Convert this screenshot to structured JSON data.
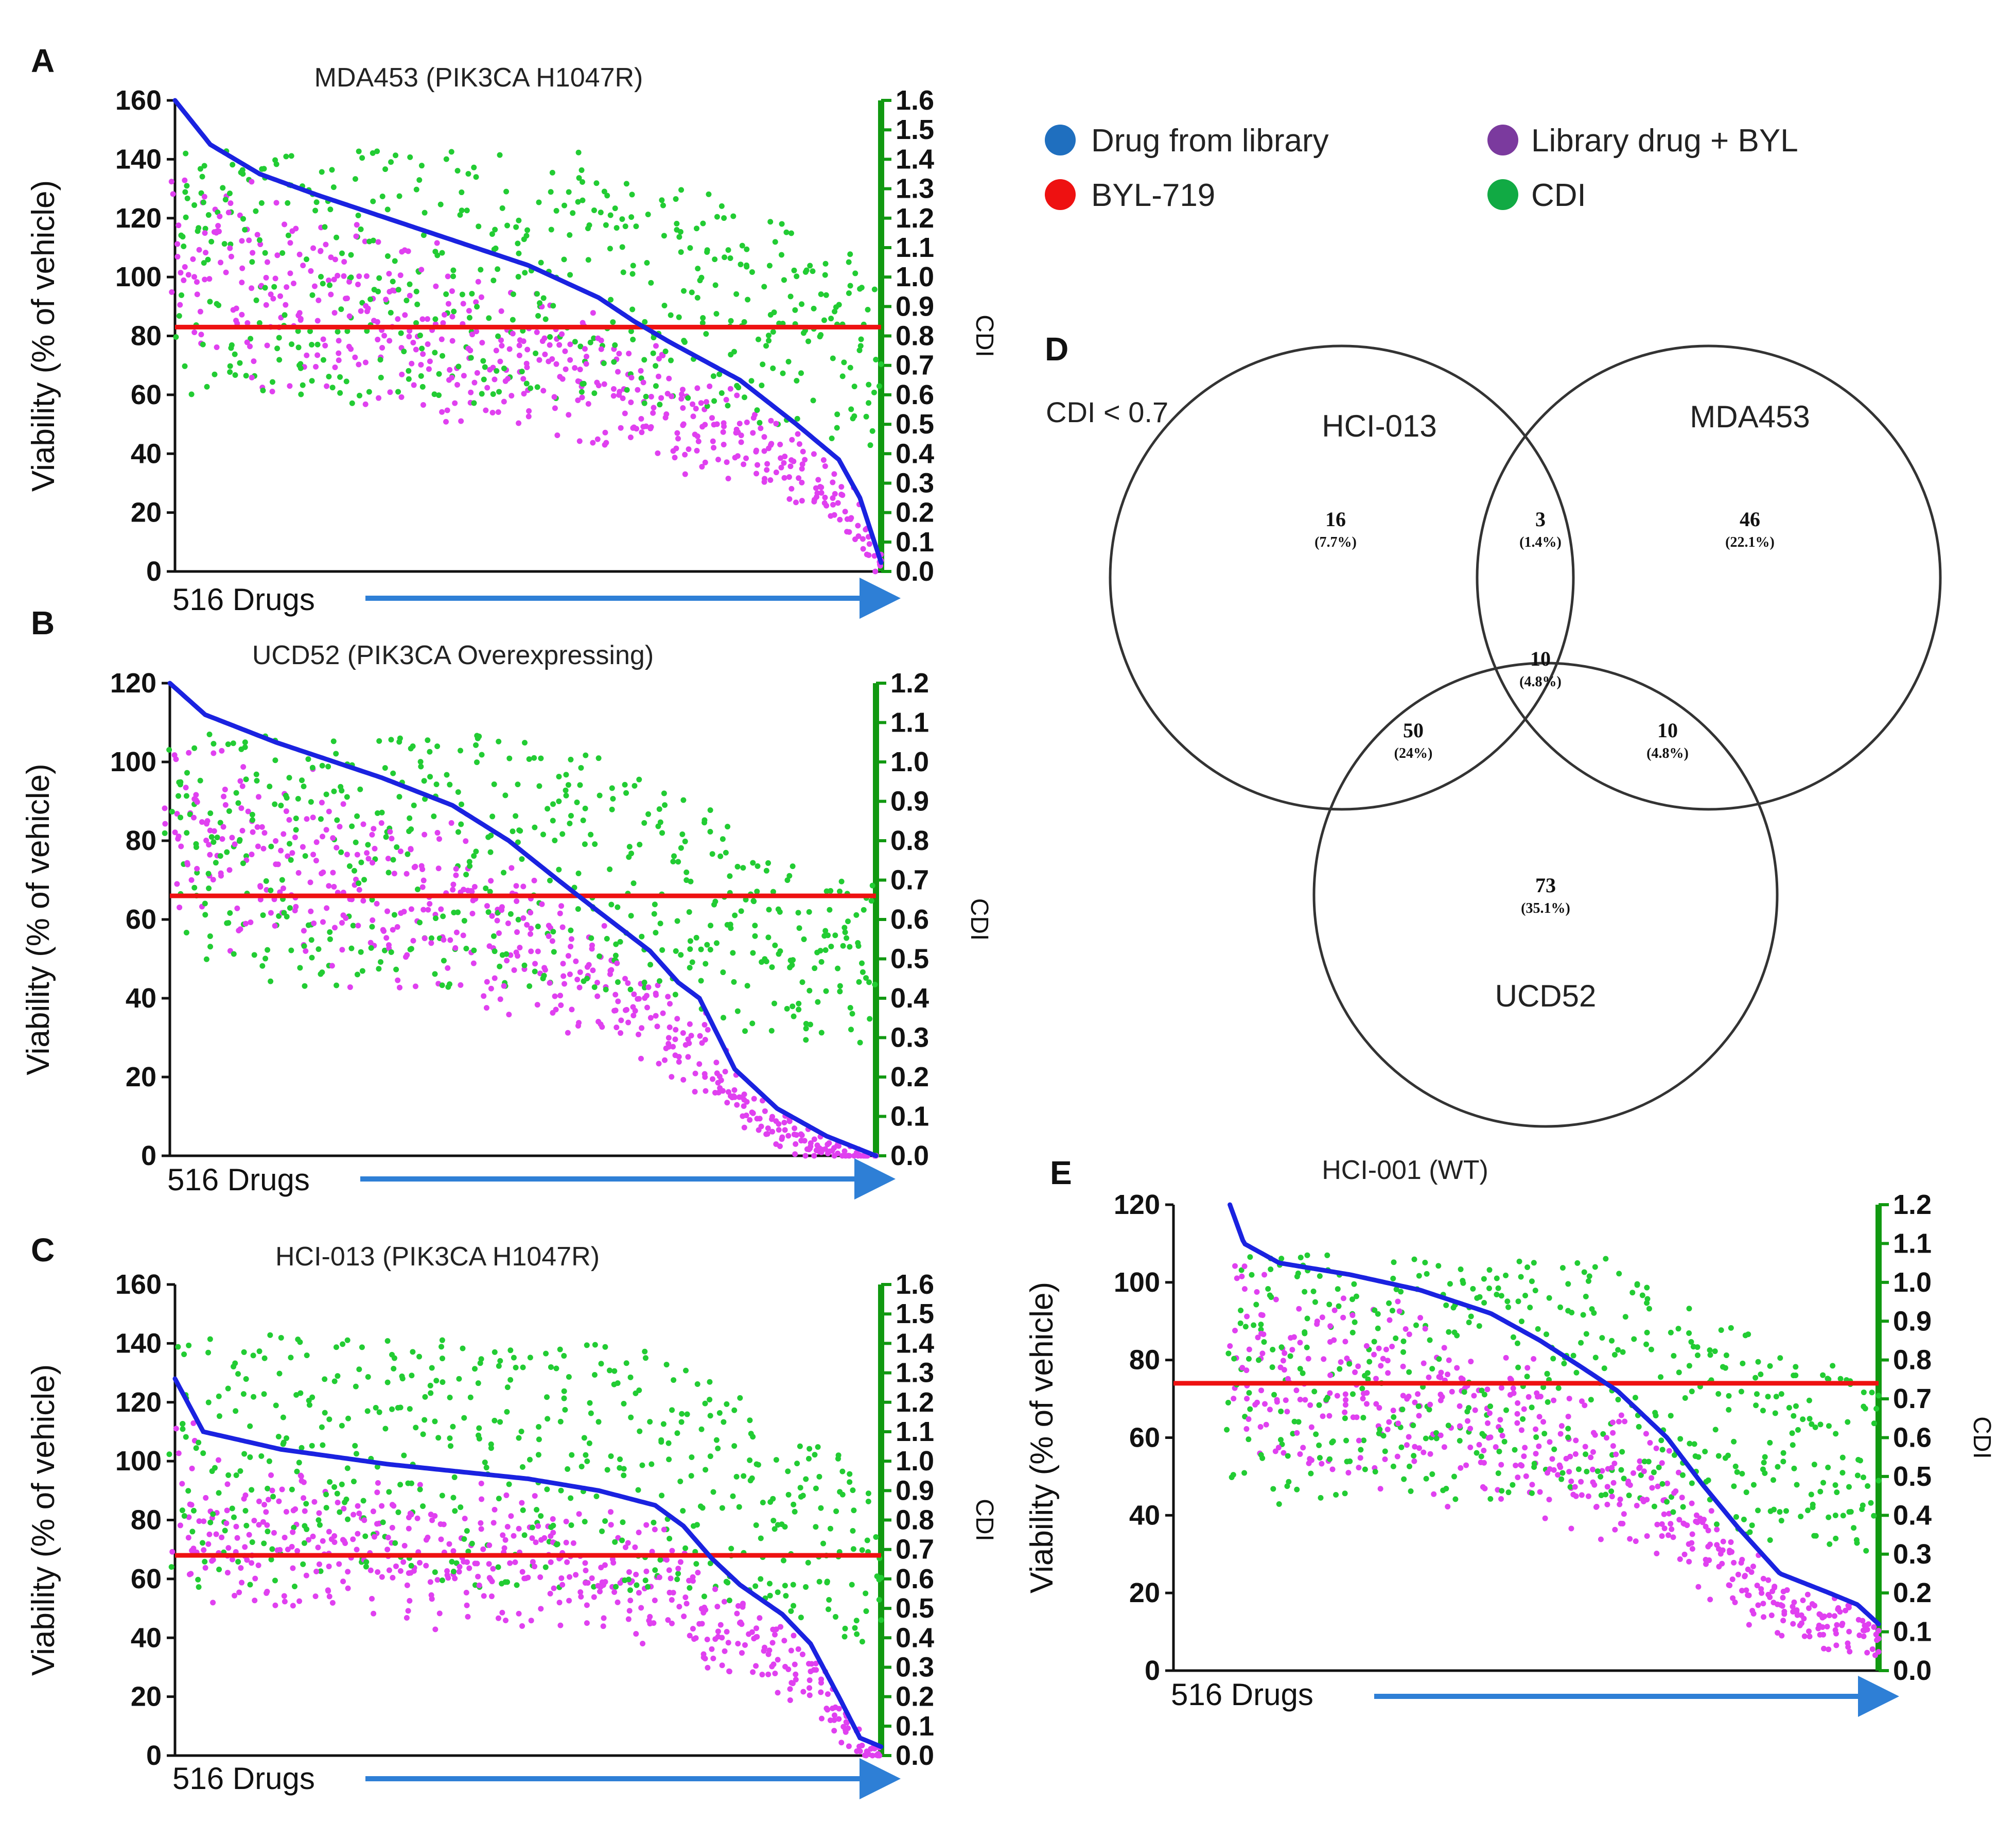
{
  "legend": {
    "items": [
      {
        "label": "Drug  from library",
        "color": "#1f6fbf"
      },
      {
        "label": "BYL-719",
        "color": "#ee1111"
      },
      {
        "label": "Library drug + BYL",
        "color": "#7b3a9e"
      },
      {
        "label": "CDI",
        "color": "#11aa44"
      }
    ]
  },
  "colors": {
    "drug_curve": "#1a22e0",
    "combo_points": "#e040f0",
    "cdi_points": "#22cc33",
    "byl_line": "#ee1111",
    "cdi_axis": "#119911",
    "arrow": "#2e7fd6"
  },
  "chart_data": [
    {
      "panel": "A",
      "type": "scatter",
      "title": "MDA453 (PIK3CA H1047R)",
      "ylabel": "Viability (% of vehicle)",
      "y2label": "CDI",
      "xlabel": "516 Drugs",
      "n_drugs": 516,
      "ylim": [
        0,
        160
      ],
      "yticks": [
        "0",
        "20",
        "40",
        "60",
        "80",
        "100",
        "120",
        "140",
        "160"
      ],
      "y2lim": [
        0,
        1.6
      ],
      "y2ticks": [
        "0.0",
        "0.1",
        "0.2",
        "0.3",
        "0.4",
        "0.5",
        "0.6",
        "0.7",
        "0.8",
        "0.9",
        "1.0",
        "1.1",
        "1.2",
        "1.3",
        "1.4",
        "1.5",
        "1.6"
      ],
      "byl_viability": 83,
      "drug_curve": [
        [
          0,
          160
        ],
        [
          0.05,
          145
        ],
        [
          0.12,
          135
        ],
        [
          0.2,
          128
        ],
        [
          0.3,
          120
        ],
        [
          0.4,
          112
        ],
        [
          0.5,
          104
        ],
        [
          0.6,
          93
        ],
        [
          0.65,
          85
        ],
        [
          0.7,
          78
        ],
        [
          0.8,
          65
        ],
        [
          0.88,
          50
        ],
        [
          0.94,
          38
        ],
        [
          0.97,
          25
        ],
        [
          1.0,
          3
        ]
      ]
    },
    {
      "panel": "B",
      "type": "scatter",
      "title": "UCD52 (PIK3CA Overexpressing)",
      "ylabel": "Viability (% of vehicle)",
      "y2label": "CDI",
      "xlabel": "516 Drugs",
      "n_drugs": 516,
      "ylim": [
        0,
        120
      ],
      "yticks": [
        "0",
        "20",
        "40",
        "60",
        "80",
        "100",
        "120"
      ],
      "y2lim": [
        0,
        1.2
      ],
      "y2ticks": [
        "0.0",
        "0.1",
        "0.2",
        "0.3",
        "0.4",
        "0.5",
        "0.6",
        "0.7",
        "0.8",
        "0.9",
        "1.0",
        "1.1",
        "1.2"
      ],
      "byl_viability": 66,
      "drug_curve": [
        [
          0,
          120
        ],
        [
          0.05,
          112
        ],
        [
          0.15,
          105
        ],
        [
          0.3,
          96
        ],
        [
          0.4,
          89
        ],
        [
          0.48,
          80
        ],
        [
          0.55,
          70
        ],
        [
          0.6,
          63
        ],
        [
          0.68,
          52
        ],
        [
          0.72,
          44
        ],
        [
          0.75,
          40
        ],
        [
          0.8,
          22
        ],
        [
          0.86,
          12
        ],
        [
          0.93,
          5
        ],
        [
          1.0,
          0
        ]
      ]
    },
    {
      "panel": "C",
      "type": "scatter",
      "title": "HCI-013 (PIK3CA H1047R)",
      "ylabel": "Viability (% of vehicle)",
      "y2label": "CDI",
      "xlabel": "516 Drugs",
      "n_drugs": 516,
      "ylim": [
        0,
        160
      ],
      "yticks": [
        "0",
        "20",
        "40",
        "60",
        "80",
        "100",
        "120",
        "140",
        "160"
      ],
      "y2lim": [
        0,
        1.6
      ],
      "y2ticks": [
        "0.0",
        "0.1",
        "0.2",
        "0.3",
        "0.4",
        "0.5",
        "0.6",
        "0.7",
        "0.8",
        "0.9",
        "1.0",
        "1.1",
        "1.2",
        "1.3",
        "1.4",
        "1.5",
        "1.6"
      ],
      "byl_viability": 68,
      "drug_curve": [
        [
          0,
          128
        ],
        [
          0.04,
          110
        ],
        [
          0.15,
          104
        ],
        [
          0.3,
          99
        ],
        [
          0.5,
          94
        ],
        [
          0.6,
          90
        ],
        [
          0.68,
          85
        ],
        [
          0.72,
          78
        ],
        [
          0.76,
          67
        ],
        [
          0.8,
          58
        ],
        [
          0.86,
          48
        ],
        [
          0.9,
          38
        ],
        [
          0.94,
          20
        ],
        [
          0.97,
          6
        ],
        [
          1.0,
          3
        ]
      ]
    },
    {
      "panel": "E",
      "type": "scatter",
      "title": "HCI-001 (WT)",
      "ylabel": "Viability (% of vehicle)",
      "y2label": "CDI",
      "xlabel": "516 Drugs",
      "n_drugs": 516,
      "ylim": [
        0,
        120
      ],
      "yticks": [
        "0",
        "20",
        "40",
        "60",
        "80",
        "100",
        "120"
      ],
      "y2lim": [
        0,
        1.2
      ],
      "y2ticks": [
        "0.0",
        "0.1",
        "0.2",
        "0.3",
        "0.4",
        "0.5",
        "0.6",
        "0.7",
        "0.8",
        "0.9",
        "1.0",
        "1.1",
        "1.2"
      ],
      "byl_viability": 74,
      "drug_curve": [
        [
          0.08,
          120
        ],
        [
          0.1,
          110
        ],
        [
          0.15,
          105
        ],
        [
          0.25,
          102
        ],
        [
          0.35,
          98
        ],
        [
          0.45,
          92
        ],
        [
          0.52,
          85
        ],
        [
          0.58,
          78
        ],
        [
          0.63,
          72
        ],
        [
          0.7,
          60
        ],
        [
          0.75,
          48
        ],
        [
          0.8,
          37
        ],
        [
          0.86,
          25
        ],
        [
          0.93,
          20
        ],
        [
          0.97,
          17
        ],
        [
          1.0,
          12
        ]
      ]
    }
  ],
  "venn": {
    "panel": "D",
    "condition": "CDI < 0.7",
    "sets": [
      "HCI-013",
      "MDA453",
      "UCD52"
    ],
    "regions": [
      {
        "id": "hci-only",
        "count": "16",
        "pct": "(7.7%)"
      },
      {
        "id": "hci-mda",
        "count": "3",
        "pct": "(1.4%)"
      },
      {
        "id": "mda-only",
        "count": "46",
        "pct": "(22.1%)"
      },
      {
        "id": "all-three",
        "count": "10",
        "pct": "(4.8%)"
      },
      {
        "id": "hci-ucd",
        "count": "50",
        "pct": "(24%)"
      },
      {
        "id": "mda-ucd",
        "count": "10",
        "pct": "(4.8%)"
      },
      {
        "id": "ucd-only",
        "count": "73",
        "pct": "(35.1%)"
      }
    ]
  }
}
